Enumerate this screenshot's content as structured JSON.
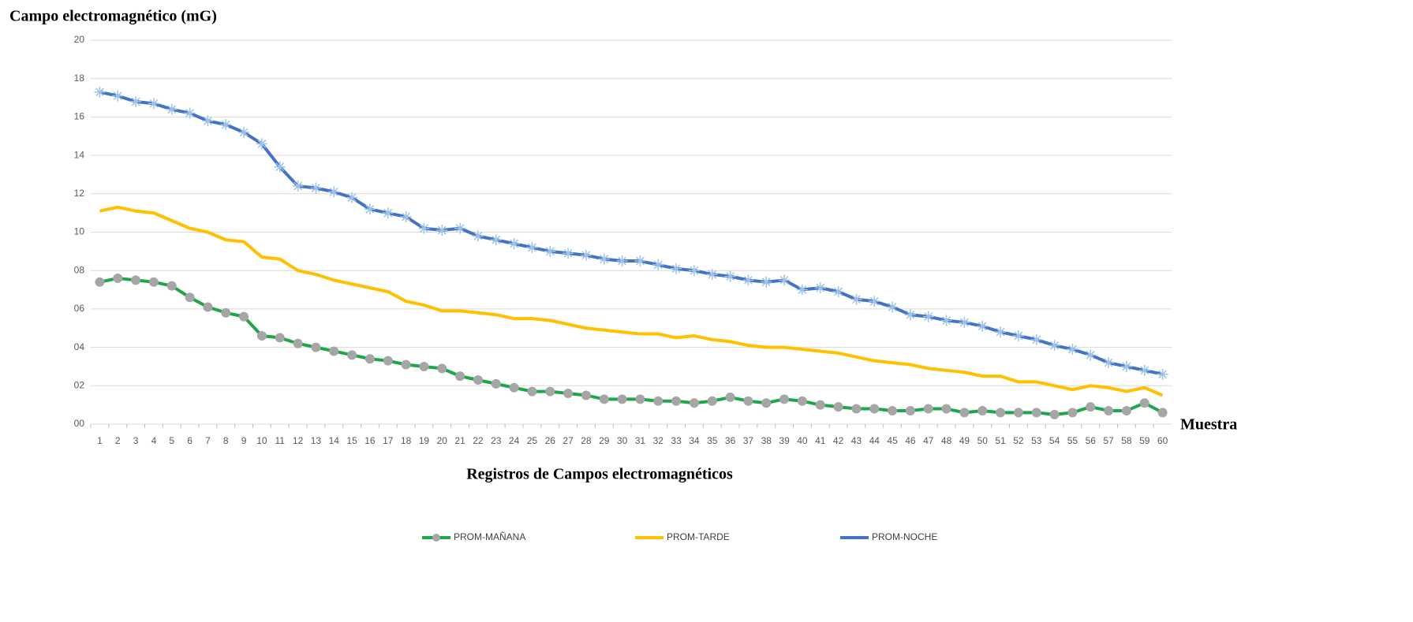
{
  "chart_data": {
    "type": "line",
    "title": "Campo electromagnético (mG)",
    "x_label": "Registros de Campos electromagnéticos",
    "x_end_label": "Muestra",
    "categories": [
      "1",
      "2",
      "3",
      "4",
      "5",
      "6",
      "7",
      "8",
      "9",
      "10",
      "11",
      "12",
      "13",
      "14",
      "15",
      "16",
      "17",
      "18",
      "19",
      "20",
      "21",
      "22",
      "23",
      "24",
      "25",
      "26",
      "27",
      "28",
      "29",
      "30",
      "31",
      "32",
      "33",
      "34",
      "35",
      "36",
      "37",
      "38",
      "39",
      "40",
      "41",
      "42",
      "43",
      "44",
      "45",
      "46",
      "47",
      "48",
      "49",
      "50",
      "51",
      "52",
      "53",
      "54",
      "55",
      "56",
      "57",
      "58",
      "59",
      "60"
    ],
    "series": [
      {
        "name": "PROM-MAÑANA",
        "color": "#1fa64a",
        "marker": "circle",
        "marker_color": "#a6a6a6",
        "values": [
          7.4,
          7.6,
          7.5,
          7.4,
          7.2,
          6.6,
          6.1,
          5.8,
          5.6,
          4.6,
          4.5,
          4.2,
          4.0,
          3.8,
          3.6,
          3.4,
          3.3,
          3.1,
          3.0,
          2.9,
          2.5,
          2.3,
          2.1,
          1.9,
          1.7,
          1.7,
          1.6,
          1.5,
          1.3,
          1.3,
          1.3,
          1.2,
          1.2,
          1.1,
          1.2,
          1.4,
          1.2,
          1.1,
          1.3,
          1.2,
          1.0,
          0.9,
          0.8,
          0.8,
          0.7,
          0.7,
          0.8,
          0.8,
          0.6,
          0.7,
          0.6,
          0.6,
          0.6,
          0.5,
          0.6,
          0.9,
          0.7,
          0.7,
          1.1,
          0.6
        ]
      },
      {
        "name": "PROM-TARDE",
        "color": "#ffc000",
        "marker": "none",
        "values": [
          11.1,
          11.3,
          11.1,
          11.0,
          10.6,
          10.2,
          10.0,
          9.6,
          9.5,
          8.7,
          8.6,
          8.0,
          7.8,
          7.5,
          7.3,
          7.1,
          6.9,
          6.4,
          6.2,
          5.9,
          5.9,
          5.8,
          5.7,
          5.5,
          5.5,
          5.4,
          5.2,
          5.0,
          4.9,
          4.8,
          4.7,
          4.7,
          4.5,
          4.6,
          4.4,
          4.3,
          4.1,
          4.0,
          4.0,
          3.9,
          3.8,
          3.7,
          3.5,
          3.3,
          3.2,
          3.1,
          2.9,
          2.8,
          2.7,
          2.5,
          2.5,
          2.2,
          2.2,
          2.0,
          1.8,
          2.0,
          1.9,
          1.7,
          1.9,
          1.5
        ]
      },
      {
        "name": "PROM-NOCHE",
        "color": "#4472c4",
        "marker": "asterisk",
        "marker_color": "#9dc3e6",
        "values": [
          17.3,
          17.1,
          16.8,
          16.7,
          16.4,
          16.2,
          15.8,
          15.6,
          15.2,
          14.6,
          13.4,
          12.4,
          12.3,
          12.1,
          11.8,
          11.2,
          11.0,
          10.8,
          10.2,
          10.1,
          10.2,
          9.8,
          9.6,
          9.4,
          9.2,
          9.0,
          8.9,
          8.8,
          8.6,
          8.5,
          8.5,
          8.3,
          8.1,
          8.0,
          7.8,
          7.7,
          7.5,
          7.4,
          7.5,
          7.0,
          7.1,
          6.9,
          6.5,
          6.4,
          6.1,
          5.7,
          5.6,
          5.4,
          5.3,
          5.1,
          4.8,
          4.6,
          4.4,
          4.1,
          3.9,
          3.6,
          3.2,
          3.0,
          2.8,
          2.6
        ]
      }
    ],
    "ylim": [
      0,
      20
    ],
    "yticks": [
      {
        "value": 0,
        "label": "00"
      },
      {
        "value": 2,
        "label": "02"
      },
      {
        "value": 4,
        "label": "04"
      },
      {
        "value": 6,
        "label": "06"
      },
      {
        "value": 8,
        "label": "08"
      },
      10,
      12,
      14,
      16,
      18,
      20
    ],
    "grid": true,
    "legend": "bottom"
  }
}
